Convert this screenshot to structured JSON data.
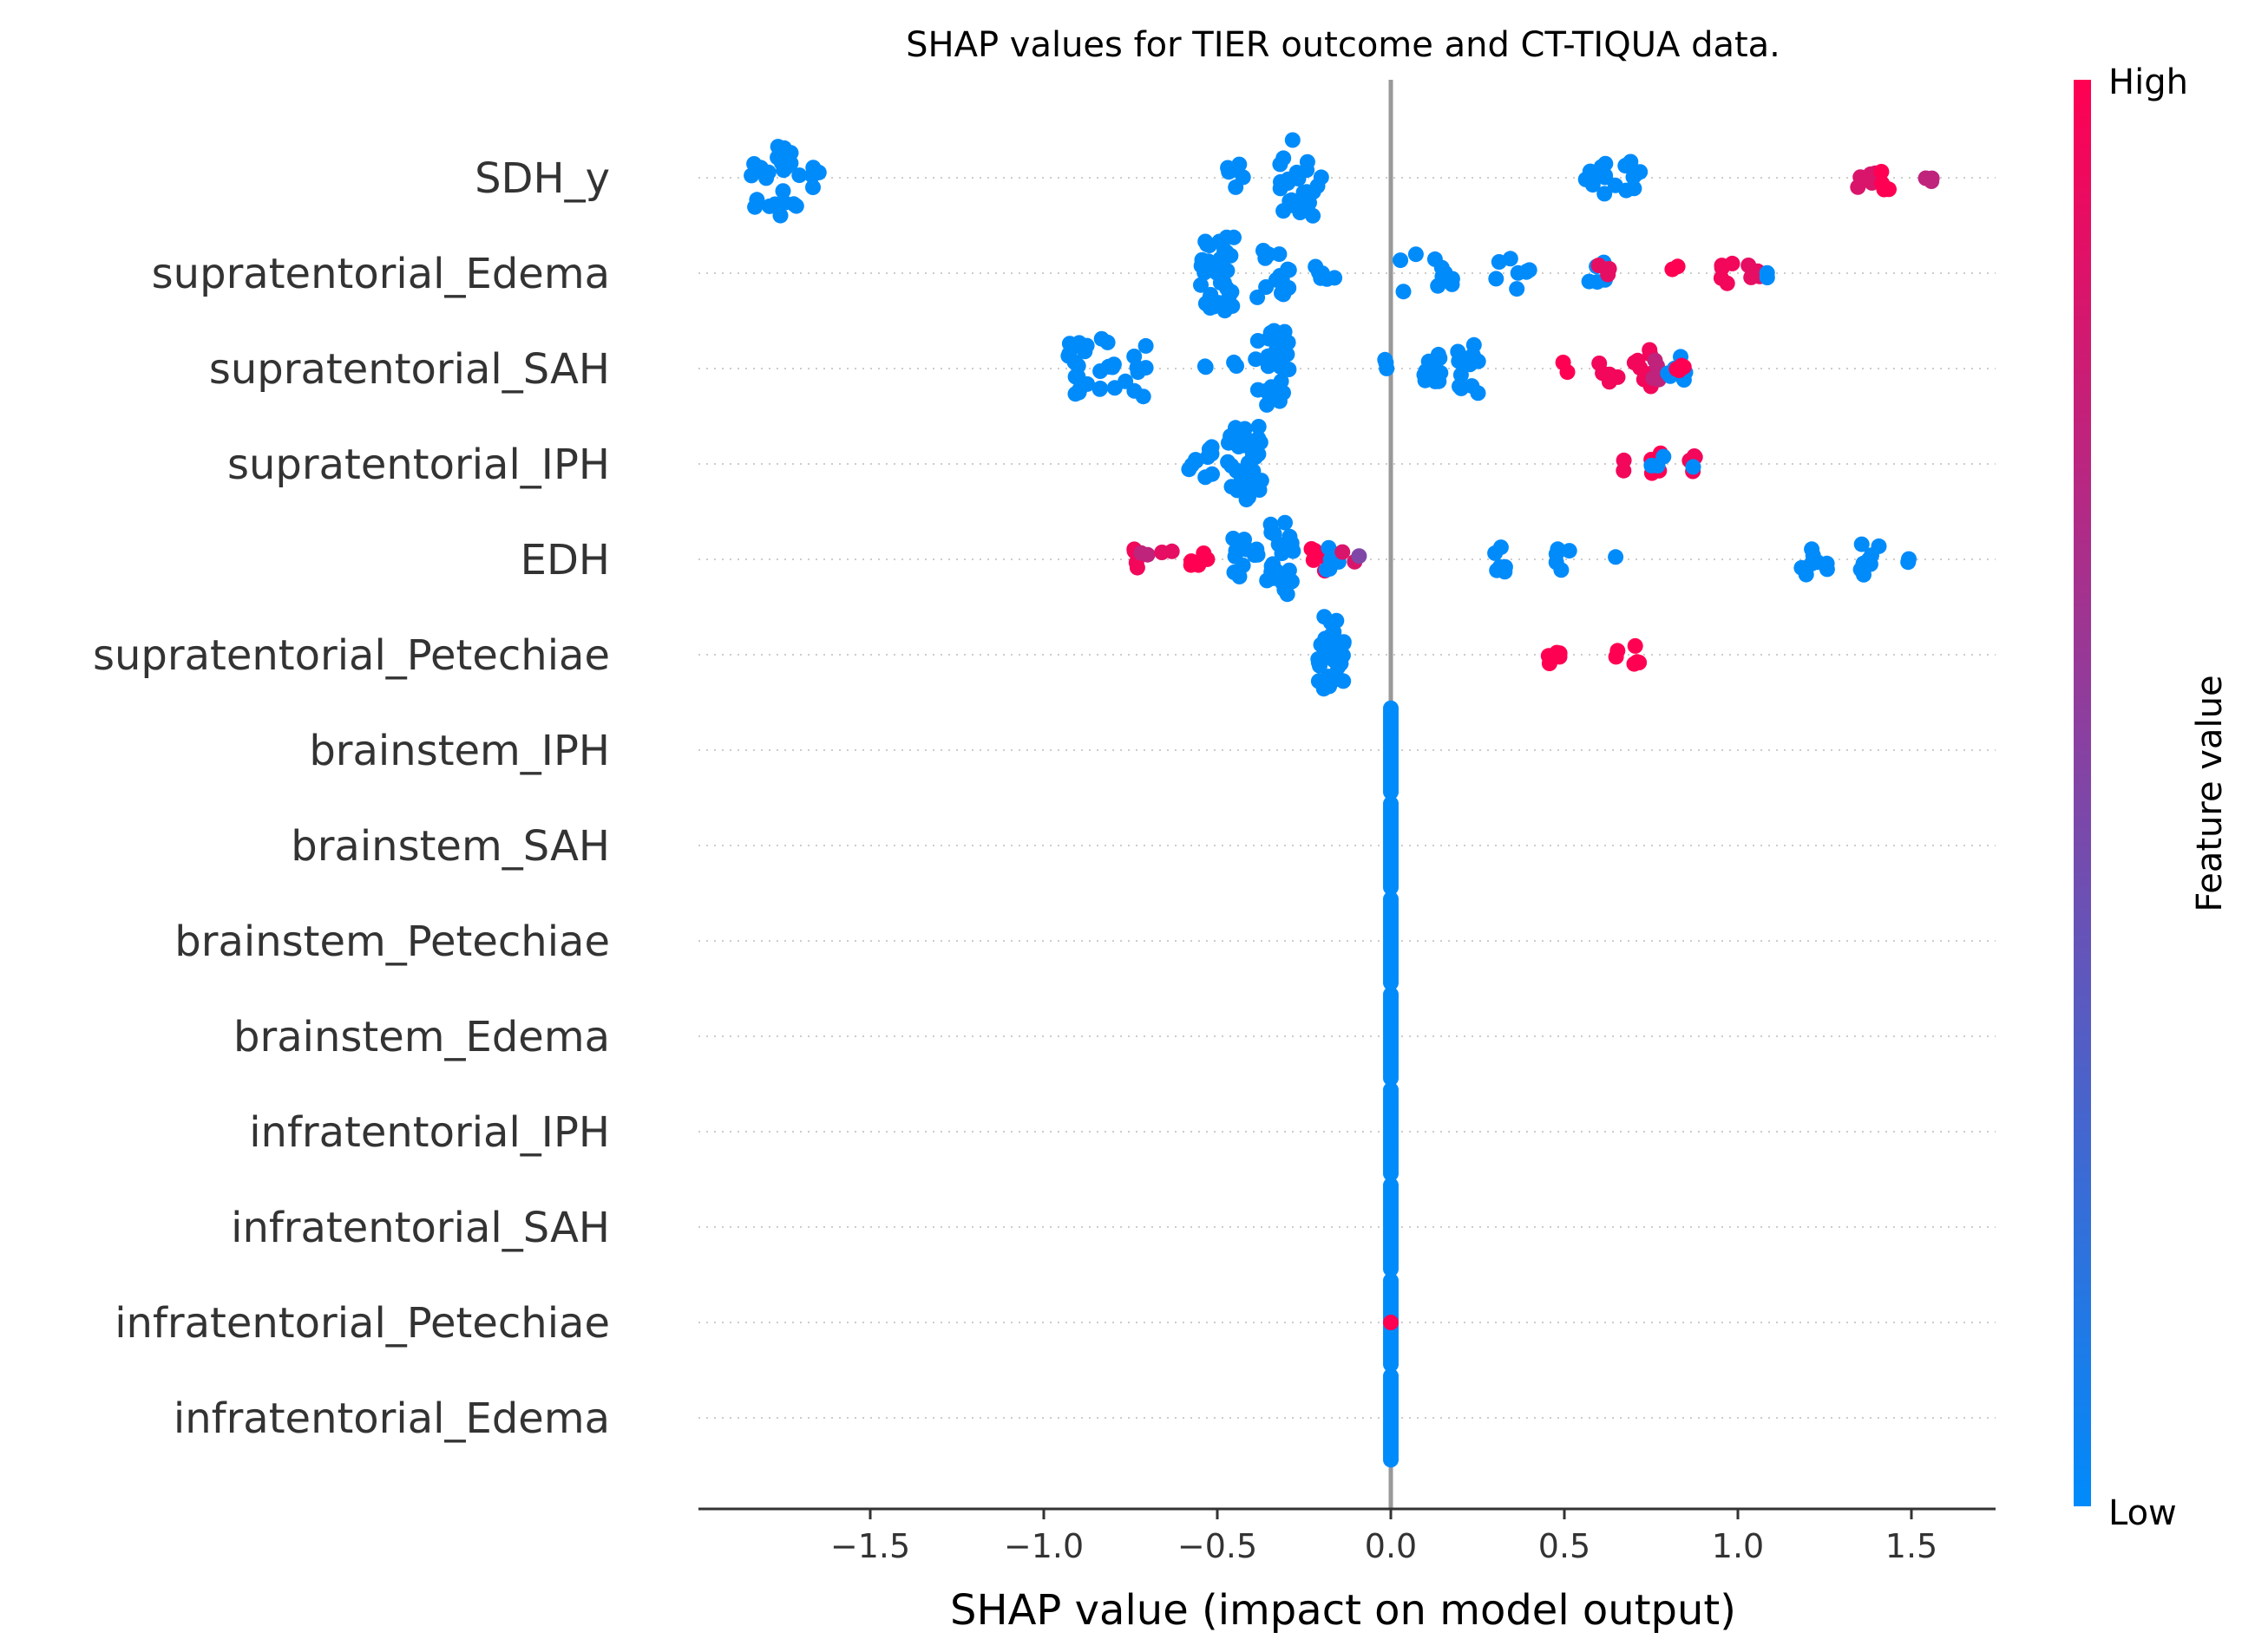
{
  "chart_data": {
    "type": "scatter",
    "subtype": "shap-beeswarm",
    "title": "SHAP values for TIER outcome and CT-TIQUA data.",
    "xlabel": "SHAP value (impact on model output)",
    "xlim": [
      -2.0,
      1.75
    ],
    "xticks": [
      -1.5,
      -1.0,
      -0.5,
      0.0,
      0.5,
      1.0,
      1.5
    ],
    "xtick_labels": [
      "−1.5",
      "−1.0",
      "−0.5",
      "0.0",
      "0.5",
      "1.0",
      "1.5"
    ],
    "features": [
      {
        "name": "SDH_y",
        "clusters": [
          {
            "center": -1.78,
            "spread": 0.08,
            "n": 26,
            "fv": 0.0
          },
          {
            "center": -1.66,
            "spread": 0.03,
            "n": 4,
            "fv": 0.0
          },
          {
            "center": -0.45,
            "spread": 0.04,
            "n": 6,
            "fv": 0.0
          },
          {
            "center": -0.26,
            "spread": 0.06,
            "n": 28,
            "fv": 0.0
          },
          {
            "center": 0.6,
            "spread": 0.05,
            "n": 10,
            "fv": 0.0
          },
          {
            "center": 0.7,
            "spread": 0.03,
            "n": 8,
            "fv": 0.0
          },
          {
            "center": 1.37,
            "spread": 0.03,
            "n": 5,
            "fv": 0.85
          },
          {
            "center": 1.43,
            "spread": 0.03,
            "n": 5,
            "fv": 1.0
          },
          {
            "center": 1.55,
            "spread": 0.02,
            "n": 3,
            "fv": 0.75
          }
        ]
      },
      {
        "name": "supratentorial_Edema",
        "clusters": [
          {
            "center": -0.5,
            "spread": 0.05,
            "n": 40,
            "fv": 0.0
          },
          {
            "center": -0.33,
            "spread": 0.06,
            "n": 14,
            "fv": 0.0
          },
          {
            "center": -0.2,
            "spread": 0.04,
            "n": 6,
            "fv": 0.0
          },
          {
            "center": 0.1,
            "spread": 0.08,
            "n": 10,
            "fv": 0.0
          },
          {
            "center": 0.35,
            "spread": 0.05,
            "n": 8,
            "fv": 0.0
          },
          {
            "center": 0.6,
            "spread": 0.03,
            "n": 5,
            "fv": 0.0
          },
          {
            "center": 0.62,
            "spread": 0.03,
            "n": 3,
            "fv": 0.9
          },
          {
            "center": 0.82,
            "spread": 0.02,
            "n": 2,
            "fv": 1.0
          },
          {
            "center": 0.97,
            "spread": 0.02,
            "n": 5,
            "fv": 0.95
          },
          {
            "center": 1.05,
            "spread": 0.02,
            "n": 4,
            "fv": 0.9
          },
          {
            "center": 1.09,
            "spread": 0.01,
            "n": 2,
            "fv": 0.0
          }
        ]
      },
      {
        "name": "supratentorial_SAH",
        "clusters": [
          {
            "center": -0.9,
            "spread": 0.03,
            "n": 16,
            "fv": 0.0
          },
          {
            "center": -0.78,
            "spread": 0.08,
            "n": 18,
            "fv": 0.0
          },
          {
            "center": -0.5,
            "spread": 0.06,
            "n": 4,
            "fv": 0.0
          },
          {
            "center": -0.34,
            "spread": 0.05,
            "n": 28,
            "fv": 0.0
          },
          {
            "center": -0.02,
            "spread": 0.03,
            "n": 3,
            "fv": 0.0
          },
          {
            "center": 0.12,
            "spread": 0.03,
            "n": 10,
            "fv": 0.0
          },
          {
            "center": 0.22,
            "spread": 0.04,
            "n": 14,
            "fv": 0.0
          },
          {
            "center": 0.5,
            "spread": 0.01,
            "n": 2,
            "fv": 1.0
          },
          {
            "center": 0.63,
            "spread": 0.03,
            "n": 6,
            "fv": 0.95
          },
          {
            "center": 0.72,
            "spread": 0.03,
            "n": 10,
            "fv": 0.95
          },
          {
            "center": 0.76,
            "spread": 0.03,
            "n": 5,
            "fv": 0.75
          },
          {
            "center": 0.82,
            "spread": 0.03,
            "n": 6,
            "fv": 0.0
          },
          {
            "center": 0.84,
            "spread": 0.02,
            "n": 4,
            "fv": 1.0
          }
        ]
      },
      {
        "name": "supratentorial_IPH",
        "clusters": [
          {
            "center": -0.55,
            "spread": 0.04,
            "n": 10,
            "fv": 0.0
          },
          {
            "center": -0.42,
            "spread": 0.05,
            "n": 40,
            "fv": 0.0
          },
          {
            "center": 0.68,
            "spread": 0.01,
            "n": 2,
            "fv": 0.95
          },
          {
            "center": 0.77,
            "spread": 0.02,
            "n": 5,
            "fv": 1.0
          },
          {
            "center": 0.77,
            "spread": 0.02,
            "n": 3,
            "fv": 0.0
          },
          {
            "center": 0.87,
            "spread": 0.01,
            "n": 4,
            "fv": 0.95
          },
          {
            "center": 0.87,
            "spread": 0.01,
            "n": 1,
            "fv": 0.0
          }
        ]
      },
      {
        "name": "EDH",
        "clusters": [
          {
            "center": -0.74,
            "spread": 0.02,
            "n": 4,
            "fv": 0.95
          },
          {
            "center": -0.7,
            "spread": 0.02,
            "n": 2,
            "fv": 0.75
          },
          {
            "center": -0.64,
            "spread": 0.02,
            "n": 2,
            "fv": 0.9
          },
          {
            "center": -0.55,
            "spread": 0.03,
            "n": 5,
            "fv": 1.0
          },
          {
            "center": -0.42,
            "spread": 0.04,
            "n": 12,
            "fv": 0.0
          },
          {
            "center": -0.32,
            "spread": 0.04,
            "n": 24,
            "fv": 0.0
          },
          {
            "center": -0.2,
            "spread": 0.03,
            "n": 6,
            "fv": 1.0
          },
          {
            "center": -0.16,
            "spread": 0.03,
            "n": 6,
            "fv": 0.0
          },
          {
            "center": -0.12,
            "spread": 0.02,
            "n": 2,
            "fv": 0.85
          },
          {
            "center": -0.09,
            "spread": 0.01,
            "n": 1,
            "fv": 0.5
          },
          {
            "center": 0.3,
            "spread": 0.03,
            "n": 6,
            "fv": 0.0
          },
          {
            "center": 0.47,
            "spread": 0.05,
            "n": 5,
            "fv": 0.0
          },
          {
            "center": 0.64,
            "spread": 0.01,
            "n": 1,
            "fv": 0.0
          },
          {
            "center": 1.22,
            "spread": 0.04,
            "n": 8,
            "fv": 0.0
          },
          {
            "center": 1.38,
            "spread": 0.03,
            "n": 8,
            "fv": 0.0
          },
          {
            "center": 1.49,
            "spread": 0.01,
            "n": 2,
            "fv": 0.0
          }
        ]
      },
      {
        "name": "supratentorial_Petechiae",
        "clusters": [
          {
            "center": -0.17,
            "spread": 0.04,
            "n": 34,
            "fv": 0.0
          },
          {
            "center": 0.47,
            "spread": 0.02,
            "n": 5,
            "fv": 1.0
          },
          {
            "center": 0.65,
            "spread": 0.01,
            "n": 2,
            "fv": 1.0
          },
          {
            "center": 0.72,
            "spread": 0.02,
            "n": 4,
            "fv": 1.0
          }
        ]
      },
      {
        "name": "brainstem_IPH",
        "clusters": [
          {
            "center": 0.0,
            "spread": 0.0,
            "n": 30,
            "fv": 0.0
          }
        ]
      },
      {
        "name": "brainstem_SAH",
        "clusters": [
          {
            "center": 0.0,
            "spread": 0.0,
            "n": 30,
            "fv": 0.0
          }
        ]
      },
      {
        "name": "brainstem_Petechiae",
        "clusters": [
          {
            "center": 0.0,
            "spread": 0.0,
            "n": 30,
            "fv": 0.0
          }
        ]
      },
      {
        "name": "brainstem_Edema",
        "clusters": [
          {
            "center": 0.0,
            "spread": 0.0,
            "n": 30,
            "fv": 0.0
          }
        ]
      },
      {
        "name": "infratentorial_IPH",
        "clusters": [
          {
            "center": 0.0,
            "spread": 0.0,
            "n": 30,
            "fv": 0.0
          }
        ]
      },
      {
        "name": "infratentorial_SAH",
        "clusters": [
          {
            "center": 0.0,
            "spread": 0.0,
            "n": 30,
            "fv": 0.0
          }
        ]
      },
      {
        "name": "infratentorial_Petechiae",
        "clusters": [
          {
            "center": 0.0,
            "spread": 0.0,
            "n": 30,
            "fv": 0.0
          },
          {
            "center": 0.0,
            "spread": 0.0,
            "n": 1,
            "fv": 1.0
          }
        ]
      },
      {
        "name": "infratentorial_Edema",
        "clusters": [
          {
            "center": 0.0,
            "spread": 0.0,
            "n": 30,
            "fv": 0.0
          }
        ]
      }
    ],
    "colorbar": {
      "label": "Feature value",
      "high_label": "High",
      "low_label": "Low",
      "low_color": "#008bfb",
      "high_color": "#ff0052"
    },
    "grid": false,
    "legend": "colorbar-right"
  }
}
